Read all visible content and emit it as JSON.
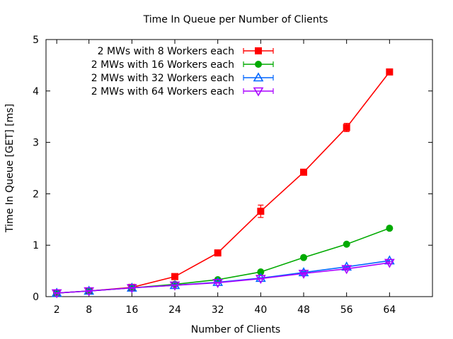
{
  "chart_data": {
    "type": "line",
    "title": "Time In Queue per Number of Clients",
    "xlabel": "Number of Clients",
    "ylabel": "Time In Queue [GET] [ms]",
    "x": [
      2,
      8,
      16,
      24,
      32,
      40,
      48,
      56,
      64
    ],
    "x_ticks": [
      "2",
      "8",
      "16",
      "24",
      "32",
      "40",
      "48",
      "56",
      "64"
    ],
    "xlim": [
      0,
      72
    ],
    "ylim": [
      0,
      5
    ],
    "y_ticks": [
      "0",
      "1",
      "2",
      "3",
      "4",
      "5"
    ],
    "grid": false,
    "legend_position": "top-left",
    "series": [
      {
        "name": "2 MWs with 8 Workers each",
        "color": "#ff0000",
        "marker": "square-filled",
        "values": [
          0.07,
          0.11,
          0.18,
          0.39,
          0.85,
          1.66,
          2.42,
          3.29,
          4.37
        ],
        "errors": [
          0.02,
          0.02,
          0.02,
          0.03,
          0.04,
          0.12,
          0.04,
          0.08,
          0.05
        ]
      },
      {
        "name": "2 MWs with 16 Workers each",
        "color": "#00aa00",
        "marker": "circle-filled",
        "values": [
          0.07,
          0.11,
          0.17,
          0.24,
          0.33,
          0.48,
          0.76,
          1.02,
          1.33
        ],
        "errors": [
          0.01,
          0.01,
          0.01,
          0.01,
          0.02,
          0.02,
          0.03,
          0.03,
          0.03
        ]
      },
      {
        "name": "2 MWs with 32 Workers each",
        "color": "#0066ff",
        "marker": "triangle-up-open",
        "values": [
          0.07,
          0.11,
          0.17,
          0.22,
          0.28,
          0.36,
          0.47,
          0.58,
          0.7
        ],
        "errors": [
          0.01,
          0.01,
          0.01,
          0.01,
          0.01,
          0.01,
          0.02,
          0.02,
          0.02
        ]
      },
      {
        "name": "2 MWs with 64 Workers each",
        "color": "#aa00ff",
        "marker": "triangle-down-open",
        "values": [
          0.07,
          0.11,
          0.17,
          0.22,
          0.27,
          0.35,
          0.45,
          0.54,
          0.66
        ],
        "errors": [
          0.01,
          0.01,
          0.01,
          0.01,
          0.01,
          0.01,
          0.02,
          0.02,
          0.02
        ]
      }
    ]
  }
}
